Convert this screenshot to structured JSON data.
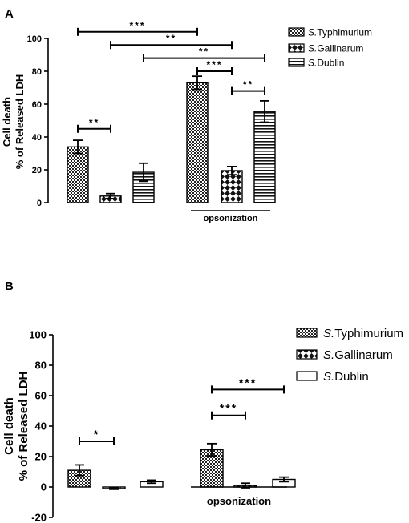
{
  "chart_data": [
    {
      "panel_label": "A",
      "type": "bar",
      "ylabel_lines": [
        "Cell death",
        "% of Released LDH"
      ],
      "ylim": [
        0,
        100
      ],
      "yticks": [
        0,
        20,
        40,
        60,
        80,
        100
      ],
      "group_label": "opsonization",
      "legend": [
        {
          "prefix": "S.",
          "name": "Typhimurium",
          "pattern": "check"
        },
        {
          "prefix": "S.",
          "name": "Gallinarum",
          "pattern": "diamond"
        },
        {
          "prefix": "S.",
          "name": "Dublin",
          "pattern": "hlines"
        }
      ],
      "bars": [
        {
          "series": "Typhimurium",
          "value": 34,
          "err": 4
        },
        {
          "series": "Gallinarum",
          "value": 4,
          "err": 1.5
        },
        {
          "series": "Dublin",
          "value": 18.5,
          "err": 5.5
        },
        {
          "series": "Typhimurium",
          "value": 73,
          "err": 4
        },
        {
          "series": "Gallinarum",
          "value": 19.5,
          "err": 2.5
        },
        {
          "series": "Dublin",
          "value": 55.5,
          "err": 6.5
        }
      ],
      "significance": [
        {
          "from": 0,
          "to": 3,
          "y": 104,
          "label": "***"
        },
        {
          "from": 1,
          "to": 4,
          "y": 96,
          "label": "**"
        },
        {
          "from": 2,
          "to": 5,
          "y": 88,
          "label": "**"
        },
        {
          "from": 3,
          "to": 4,
          "y": 80,
          "label": "***"
        },
        {
          "from": 4,
          "to": 5,
          "y": 68,
          "label": "**"
        },
        {
          "from": 0,
          "to": 1,
          "y": 45,
          "label": "**"
        }
      ]
    },
    {
      "panel_label": "B",
      "type": "bar",
      "ylabel_lines": [
        "Cell death",
        "% of Released LDH"
      ],
      "ylim": [
        -20,
        100
      ],
      "yticks": [
        -20,
        0,
        20,
        40,
        60,
        80,
        100
      ],
      "group_label": "opsonization",
      "legend": [
        {
          "prefix": "S.",
          "name": "Typhimurium",
          "pattern": "check"
        },
        {
          "prefix": "S.",
          "name": "Gallinarum",
          "pattern": "diamond"
        },
        {
          "prefix": "S.",
          "name": "Dublin",
          "pattern": "open"
        }
      ],
      "bars": [
        {
          "series": "Typhimurium",
          "value": 11,
          "err": 3.5
        },
        {
          "series": "Gallinarum",
          "value": -1,
          "err": 0.5
        },
        {
          "series": "Dublin",
          "value": 3.5,
          "err": 1
        },
        {
          "series": "Typhimurium",
          "value": 24.5,
          "err": 4
        },
        {
          "series": "Gallinarum",
          "value": 1,
          "err": 1.5
        },
        {
          "series": "Dublin",
          "value": 5,
          "err": 1.5
        }
      ],
      "significance": [
        {
          "from": 0,
          "to": 1,
          "y": 30,
          "label": "*"
        },
        {
          "from": 3,
          "to": 4,
          "y": 47,
          "label": "***"
        },
        {
          "from": 3,
          "to": 5,
          "y": 64,
          "label": "***"
        }
      ]
    }
  ]
}
